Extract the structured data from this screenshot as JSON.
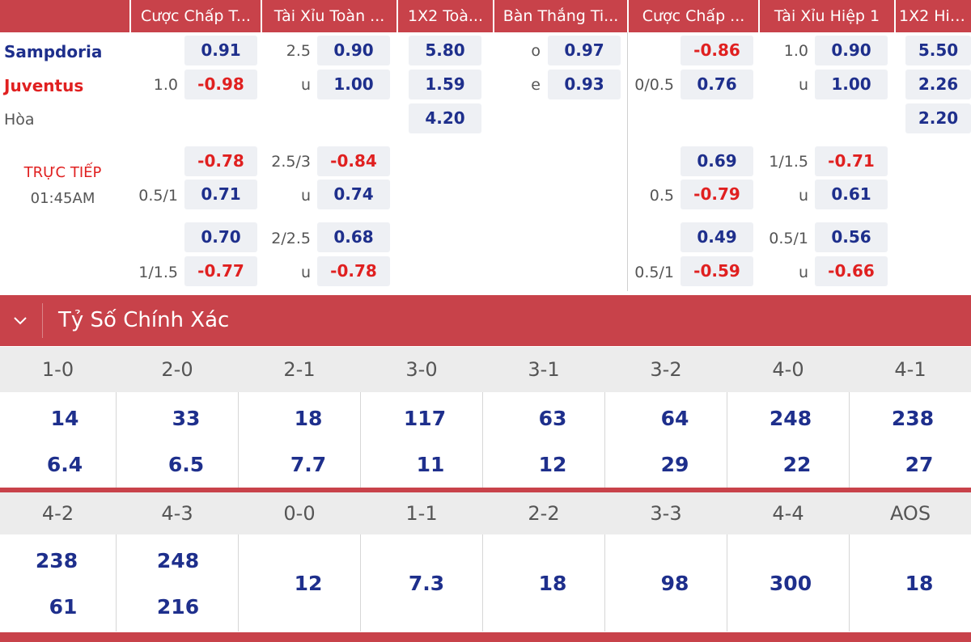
{
  "headers": [
    "Cược Chấp T...",
    "Tài Xỉu Toàn ...",
    "1X2 Toà...",
    "Bàn Thắng Ti...",
    "Cược Chấp ...",
    "Tài Xỉu Hiệp 1",
    "1X2 Hiệ..."
  ],
  "teams": {
    "home": "Sampdoria",
    "away": "Juventus",
    "draw": "Hòa"
  },
  "colors": {
    "home": "#1e2f8c",
    "away": "#e02020",
    "accent": "#c8424a"
  },
  "live": {
    "status": "TRỰC TIẾP",
    "time": "01:45AM"
  },
  "main": {
    "ft_hdp_line": "1.0",
    "ft_hdp_home": "0.91",
    "ft_hdp_away": "-0.98",
    "ft_ou_line": "2.5",
    "ft_ou_u": "u",
    "ft_ou_over": "0.90",
    "ft_ou_under": "1.00",
    "ft_1x2": [
      "5.80",
      "1.59",
      "4.20"
    ],
    "oe_o": "o",
    "oe_e": "e",
    "oe_odd": "0.97",
    "oe_even": "0.93",
    "h1_hdp_line": "0/0.5",
    "h1_hdp_home": "-0.86",
    "h1_hdp_away": "0.76",
    "h1_ou_line": "1.0",
    "h1_ou_u": "u",
    "h1_ou_over": "0.90",
    "h1_ou_under": "1.00",
    "h1_1x2": [
      "5.50",
      "2.26",
      "2.20"
    ]
  },
  "alt": [
    {
      "ft_hdp_line": "0.5/1",
      "ft_hdp_home": "-0.78",
      "ft_hdp_away": "0.71",
      "ft_ou_line": "2.5/3",
      "ft_ou_u": "u",
      "ft_ou_over": "-0.84",
      "ft_ou_under": "0.74",
      "h1_hdp_line": "0.5",
      "h1_hdp_home": "0.69",
      "h1_hdp_away": "-0.79",
      "h1_ou_line": "1/1.5",
      "h1_ou_u": "u",
      "h1_ou_over": "-0.71",
      "h1_ou_under": "0.61"
    },
    {
      "ft_hdp_line": "1/1.5",
      "ft_hdp_home": "0.70",
      "ft_hdp_away": "-0.77",
      "ft_ou_line": "2/2.5",
      "ft_ou_u": "u",
      "ft_ou_over": "0.68",
      "ft_ou_under": "-0.78",
      "h1_hdp_line": "0.5/1",
      "h1_hdp_home": "0.49",
      "h1_hdp_away": "-0.59",
      "h1_ou_line": "0.5/1",
      "h1_ou_u": "u",
      "h1_ou_over": "0.56",
      "h1_ou_under": "-0.66"
    }
  ],
  "correct_score": {
    "title": "Tỷ Số Chính Xác",
    "row1": [
      {
        "score": "1-0",
        "home": "14",
        "away": "6.4"
      },
      {
        "score": "2-0",
        "home": "33",
        "away": "6.5"
      },
      {
        "score": "2-1",
        "home": "18",
        "away": "7.7"
      },
      {
        "score": "3-0",
        "home": "117",
        "away": "11"
      },
      {
        "score": "3-1",
        "home": "63",
        "away": "12"
      },
      {
        "score": "3-2",
        "home": "64",
        "away": "29"
      },
      {
        "score": "4-0",
        "home": "248",
        "away": "22"
      },
      {
        "score": "4-1",
        "home": "238",
        "away": "27"
      }
    ],
    "row2": [
      {
        "score": "4-2",
        "home": "238",
        "away": "61"
      },
      {
        "score": "4-3",
        "home": "248",
        "away": "216"
      },
      {
        "score": "0-0",
        "value": "12"
      },
      {
        "score": "1-1",
        "value": "7.3"
      },
      {
        "score": "2-2",
        "value": "18"
      },
      {
        "score": "3-3",
        "value": "98"
      },
      {
        "score": "4-4",
        "value": "300"
      },
      {
        "score": "AOS",
        "value": "18"
      }
    ]
  }
}
